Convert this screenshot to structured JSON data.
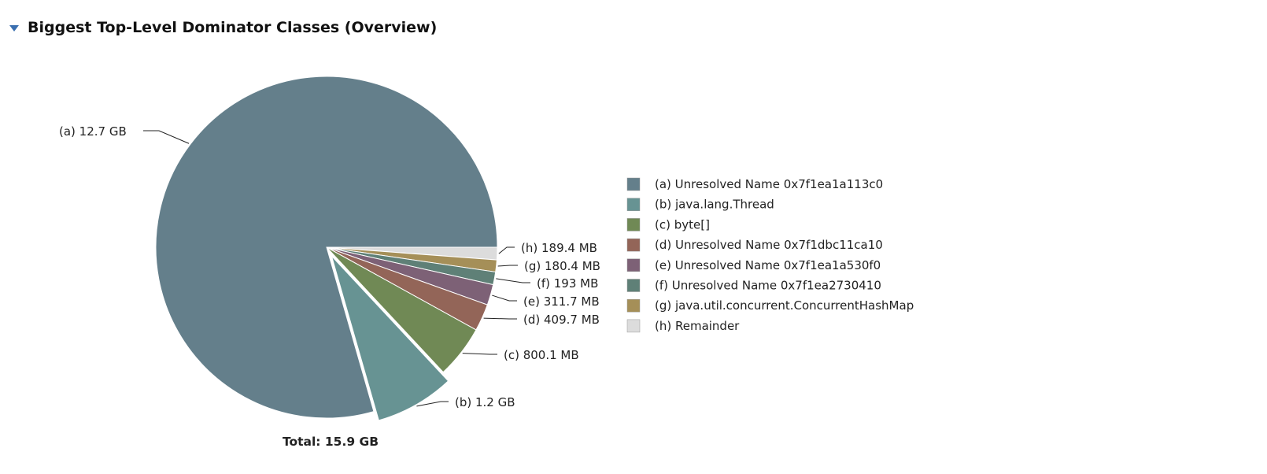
{
  "header": {
    "title": "Biggest Top-Level Dominator Classes (Overview)"
  },
  "chart_data": {
    "type": "pie",
    "title": "Biggest Top-Level Dominator Classes (Overview)",
    "total_label": "Total: 15.9 GB",
    "total": 15.9,
    "unit": "GB",
    "slices": [
      {
        "key": "(a)",
        "name": "Unresolved Name 0x7f1ea1a113c0",
        "size_label": "12.7 GB",
        "value": 12.7,
        "color": "#647f8b"
      },
      {
        "key": "(b)",
        "name": "java.lang.Thread",
        "size_label": "1.2 GB",
        "value": 1.2,
        "color": "#679393",
        "exploded": true
      },
      {
        "key": "(c)",
        "name": "byte[]",
        "size_label": "800.1 MB",
        "value": 0.8001,
        "color": "#708955"
      },
      {
        "key": "(d)",
        "name": "Unresolved Name 0x7f1dbc11ca10",
        "size_label": "409.7 MB",
        "value": 0.4097,
        "color": "#936558"
      },
      {
        "key": "(e)",
        "name": "Unresolved Name 0x7f1ea1a530f0",
        "size_label": "311.7 MB",
        "value": 0.3117,
        "color": "#7d6176"
      },
      {
        "key": "(f)",
        "name": "Unresolved Name 0x7f1ea2730410",
        "size_label": "193 MB",
        "value": 0.193,
        "color": "#5f8077"
      },
      {
        "key": "(g)",
        "name": "java.util.concurrent.ConcurrentHashMap",
        "size_label": "180.4 MB",
        "value": 0.1804,
        "color": "#a58f58"
      },
      {
        "key": "(h)",
        "name": "Remainder",
        "size_label": "189.4 MB",
        "value": 0.1894,
        "color": "#dcdcdc"
      }
    ],
    "legend_position": "right"
  }
}
